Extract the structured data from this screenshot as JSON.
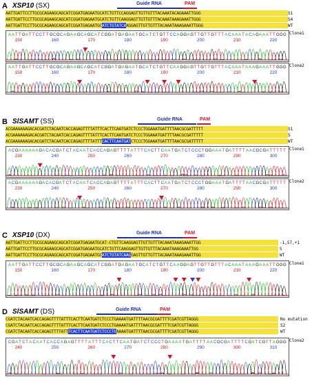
{
  "panels": [
    {
      "letter": "A",
      "gene": "XSP10",
      "tag": "(SX)",
      "guide_label": "Guide RNA",
      "pam_label": "PAM",
      "seqs": [
        {
          "text": "AATTGATTCCTTGCGCAGAAGCAGCATCGGATGAGAATGCATCTGTTCCAGGAGTTGTTGTTTACAAATACAGAAATTGGG",
          "label": "S1"
        },
        {
          "text": "AATTGATTCCTTGCGCAGAAGCAGCATCGGATGAGAATGCATCTGTTCAAGGAGTTGTTGTTTACAAATAAAGAAATTGGG",
          "label": "S4"
        },
        {
          "text": "AATTGATTCCTTGCGCAGAAGCAGCATCGGATGAGAATGCATCTGTATCAAGGAGTTGTTGTTTACAAATAAAGAAATTGGG",
          "label": "WT"
        }
      ],
      "traces": [
        {
          "seq": "AATTGATTCCTTGCGCAGAAGCAGCATCGGATGAGAATGCATCTGTTCCAGGAGTTGTTGTTTACAAATACAGAAATTGGG",
          "ticks": [
            "150",
            "160",
            "170",
            "180",
            "190",
            "200",
            "210",
            "220"
          ],
          "label": "Clone1"
        },
        {
          "seq": "AATTGATTCCTTGCGCAGAAGCAGCATCGGATGAGAATGCATCTGTTCAAGGAGTTGTTGTTTACAAATAAAGAAATTGGG",
          "ticks": [
            "150",
            "160",
            "170",
            "180",
            "190",
            "200",
            "210",
            "220"
          ],
          "label": "Clone2"
        }
      ]
    },
    {
      "letter": "B",
      "gene": "SlSAMT",
      "tag": "(SS)",
      "guide_label": "Guide RNA",
      "pam_label": "PAM",
      "seqs": [
        {
          "text": "ACGAAAAAAGACACGATCTACAATCACCAGAGTTTTATTTCACTTCAATGATCTCCCTGGAAATGATTTTAACGCGATTTTT",
          "label": "S1"
        },
        {
          "text": "ACGAAAAAAGACACGATCTACAATCACCAGAGTTTTATTTCACTTCAATGATCTCCCTGGAAATGATTTTAACGCGATTTTT",
          "label": "S"
        },
        {
          "text": "ACGAAAAAAGACACGATCTACAATCACCAGAGTTTTATTTCACTTCAATGATCTCCCTGGAAATGATTTTAACGCGATTTTT",
          "label": "WT"
        }
      ],
      "traces": [
        {
          "seq": "ACGAAAAAAGACACGATCTACAATCACCAGAGTTTTATTTCACTTCAATGATCTCCCTGGAAATGATTTTAACGCGATTTTT",
          "ticks": [
            "230",
            "240",
            "250",
            "260",
            "270",
            "280",
            "290",
            "300"
          ],
          "label": "Clone1"
        },
        {
          "seq": "ACGAAAAAAGACACGATCTACAATCACCAGAGTTTTATTTCACTTCAATGATCTCCCTGGAAATGATTTTAACGCGATTTTT",
          "ticks": [
            "230",
            "240",
            "250",
            "260",
            "270",
            "280",
            "290",
            "300"
          ],
          "label": "Clone2"
        }
      ]
    },
    {
      "letter": "C",
      "gene": "XSP10",
      "tag": "(DX)",
      "guide_label": "Guide RNA",
      "pam_label": "PAM",
      "seqs": [
        {
          "text": "AATTGATTCCTTGCGCAGAAGCAGCATCGGATGAGAATGCAT-CTGTTCAAGGAGTTGTTGTTTACAAATAAAGAAATTGG",
          "label": "-1,S7,+1"
        },
        {
          "text": "AATTGATTCCTTGCGCAGAAGCAGCATCGGATGAGAATGCATCTGTTCAAGGAGTTGTTGTTTACAAATAAAGAAATTGG",
          "label": "S"
        },
        {
          "text": "AATTGATTCCTTGCGCAGAAGCAGCATCGGATGAGAATGCATCTGTATCAAGGAGTTGTTGTTTACAAATAAAGAAATTGG",
          "label": "WT"
        }
      ],
      "traces": [
        {
          "seq": "AATTGATTCCTTGCGCAGAAGCAGCATCGGATGAGAATGCATCTGTTCAAGGAGTTGTTGTTTACAAATAAAGAAATTGGG",
          "ticks": [
            "150",
            "160",
            "170",
            "180",
            "190",
            "200",
            "210",
            "220"
          ],
          "label": "Clone1"
        }
      ]
    },
    {
      "letter": "D",
      "gene": "SlSAMT",
      "tag": "(DS)",
      "guide_label": "Guide RNA",
      "pam_label": "PAM",
      "seqs": [
        {
          "text": "CGATCTACAATCACCAGAGTTTTATTTCACTTCAATGATCTCCCTGAAAATGATTTTAACGCGATTTTCGATCGTTAGGG",
          "label": "No mutation"
        },
        {
          "text": "CGATCTACAATCACCAGAGTTTTATTTCACTTCAATGATCTCCCTGAAAATGATTTTAACGCGATTTTCGATCGTTAGGG",
          "label": "S2"
        },
        {
          "text": "CGATCTACAATCACCAGAGTTTTATTTCACTTCAATGATCTCCCTGAAAATGATTTTAACGCGATTTTCGATCGTTAGGG",
          "label": "WT"
        }
      ],
      "traces": [
        {
          "seq": "CGATCTACAATCACCAGAGTTTTATTTCACTTCAATGATCTCCCTGAAAATGATTTTAACGCGATTTTCGATCGTTAGGG",
          "ticks": [
            "240",
            "250",
            "260",
            "270",
            "280",
            "290",
            "300",
            "310"
          ],
          "label": "Clone2"
        }
      ]
    }
  ],
  "colors": {
    "A": "#1fae1f",
    "C": "#1f3fd0",
    "G": "#111111",
    "T": "#d4141c",
    "highlight": "#1f40d8",
    "guide": "#1a2fb8",
    "pam": "#d0142c",
    "seqbg": "#f5e13a"
  }
}
